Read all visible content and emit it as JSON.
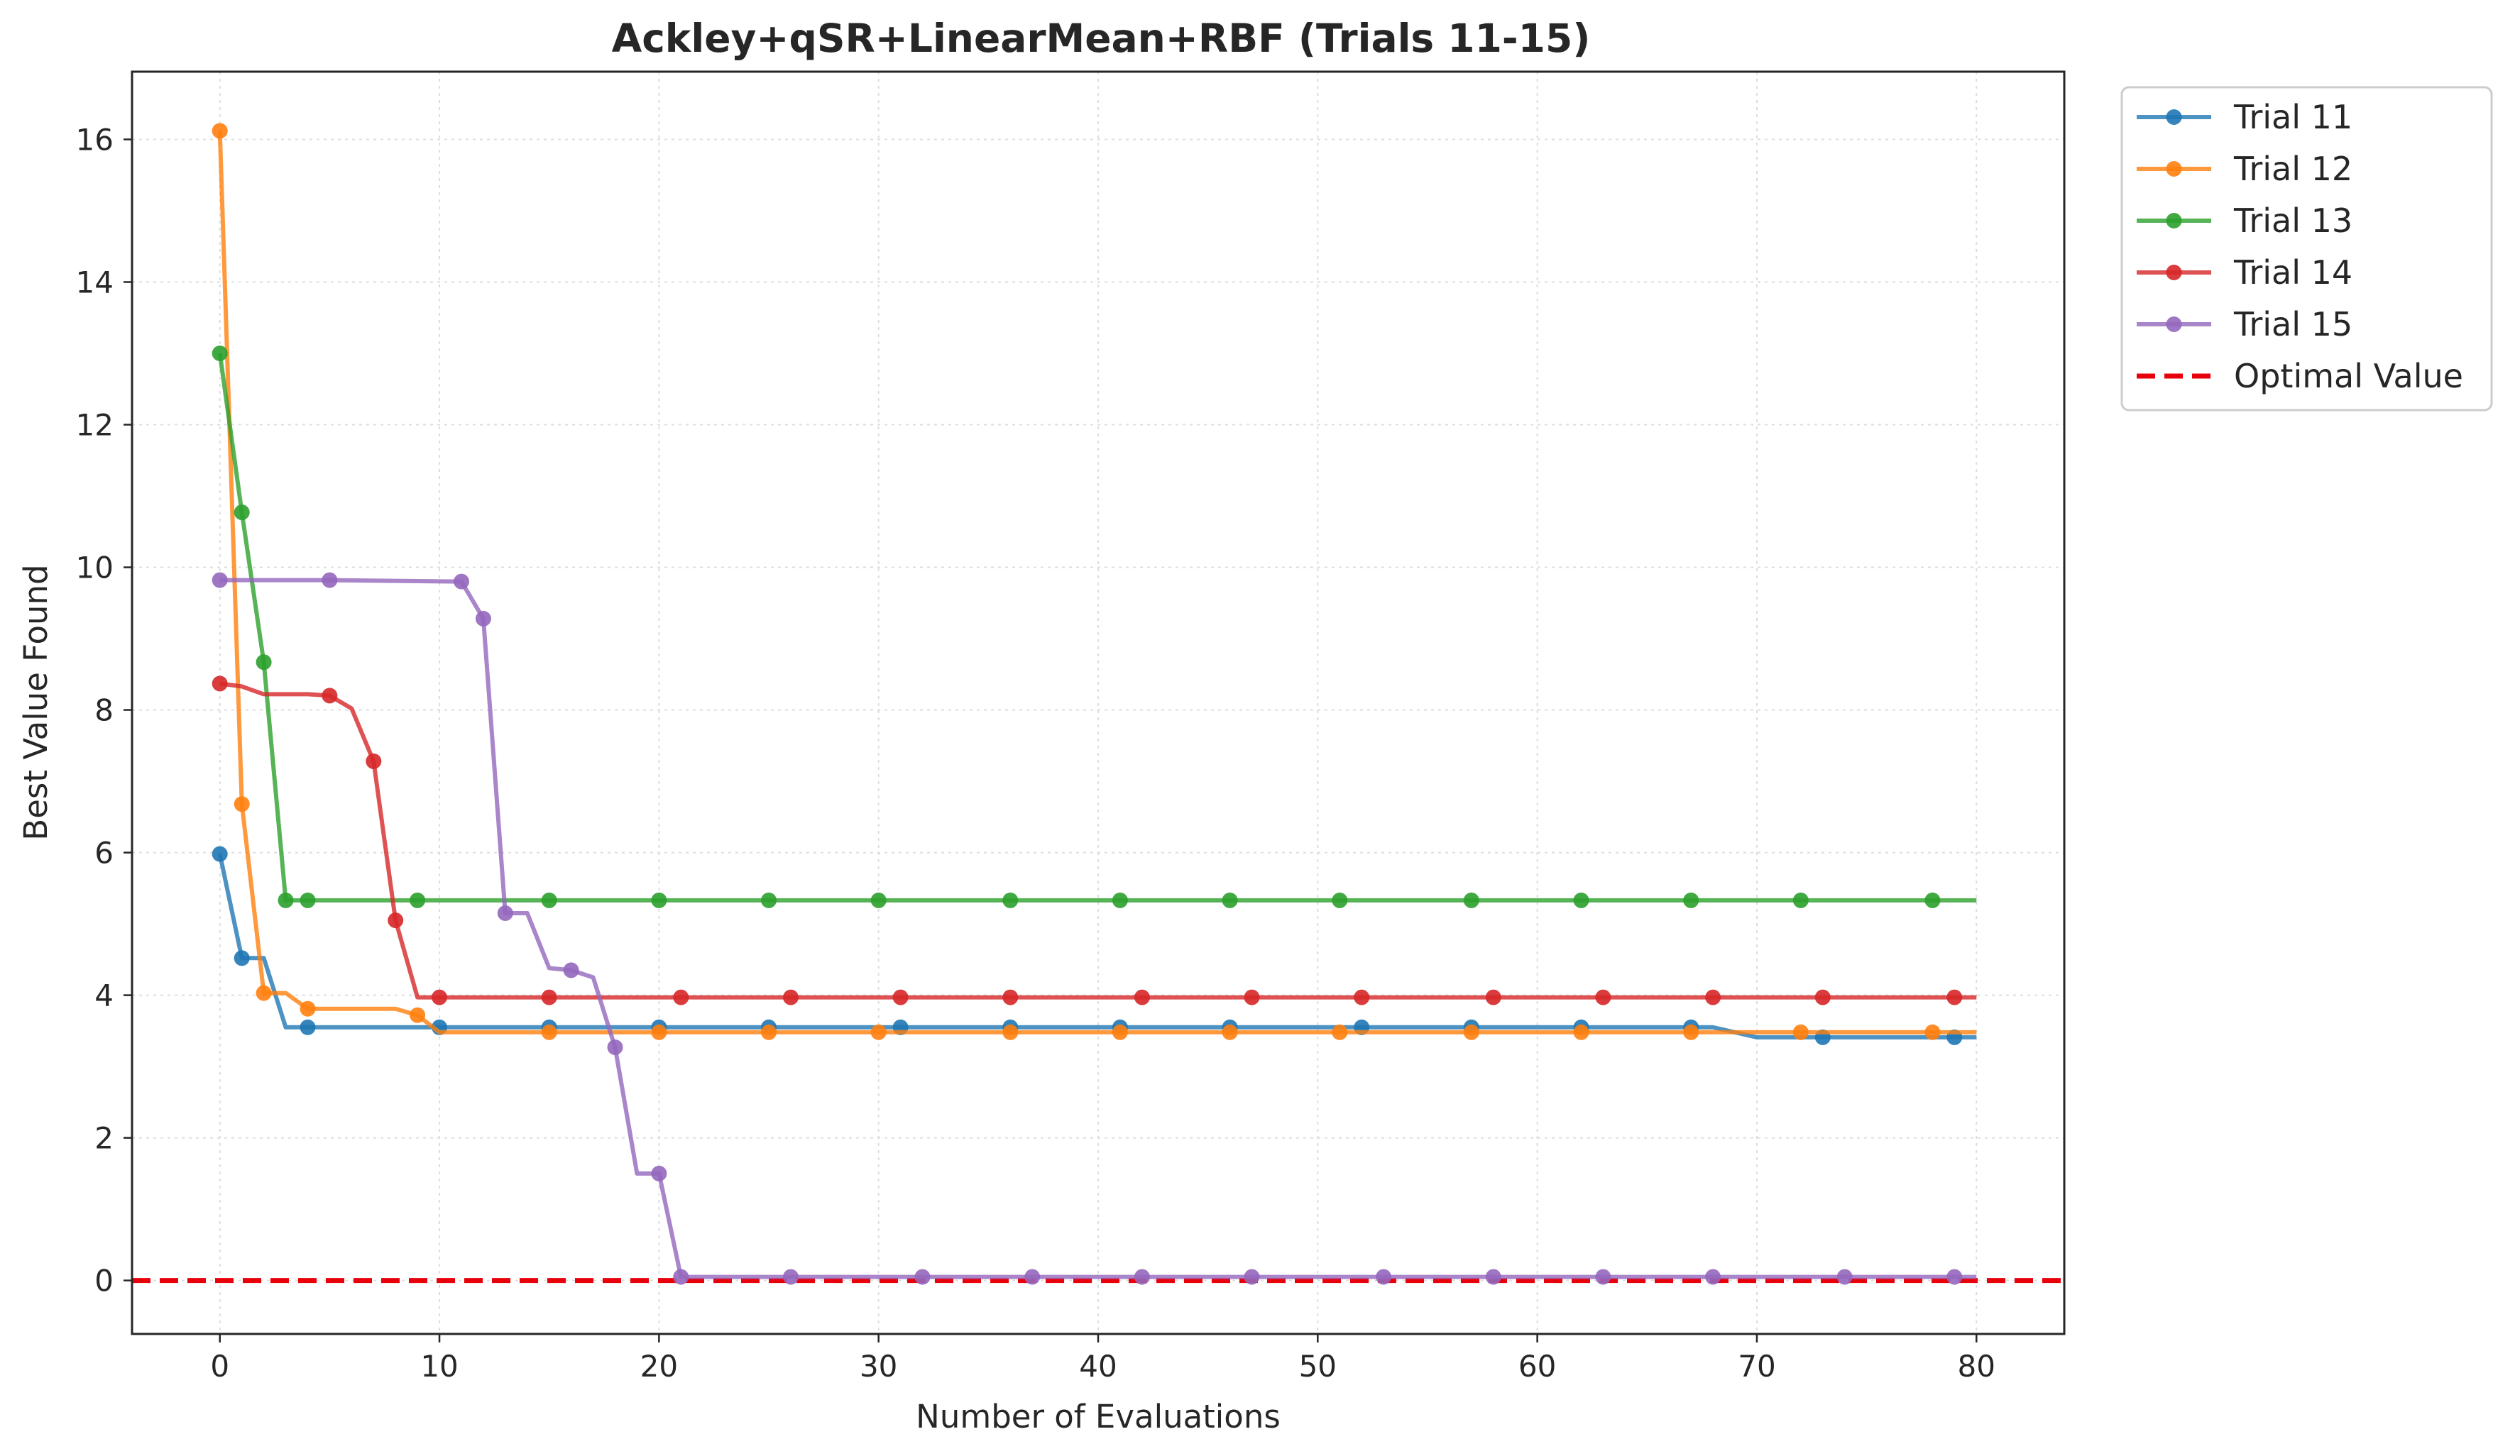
{
  "chart_data": {
    "type": "line",
    "title": "Ackley+qSR+LinearMean+RBF (Trials 11-15)",
    "xlabel": "Number of Evaluations",
    "ylabel": "Best Value Found",
    "xlim": [
      -4,
      84
    ],
    "ylim": [
      -0.75,
      16.95
    ],
    "xticks": [
      "0",
      "10",
      "20",
      "30",
      "40",
      "50",
      "60",
      "70",
      "80"
    ],
    "yticks": [
      "0",
      "2",
      "4",
      "6",
      "8",
      "10",
      "12",
      "14",
      "16"
    ],
    "grid": true,
    "legend_position": "outside-top-right",
    "series": [
      {
        "name": "Trial 11",
        "color": "#1f77b4",
        "points": [
          [
            0,
            5.98
          ],
          [
            1,
            4.52
          ],
          [
            2,
            4.52
          ],
          [
            3,
            3.55
          ],
          [
            4,
            3.55
          ],
          [
            10,
            3.55
          ],
          [
            15,
            3.55
          ],
          [
            20,
            3.55
          ],
          [
            25,
            3.55
          ],
          [
            31,
            3.55
          ],
          [
            36,
            3.55
          ],
          [
            41,
            3.55
          ],
          [
            46,
            3.55
          ],
          [
            52,
            3.55
          ],
          [
            57,
            3.55
          ],
          [
            62,
            3.55
          ],
          [
            67,
            3.55
          ],
          [
            68,
            3.55
          ],
          [
            70,
            3.41
          ],
          [
            73,
            3.41
          ],
          [
            79,
            3.41
          ],
          [
            80,
            3.41
          ]
        ],
        "markers": [
          0,
          1,
          4,
          10,
          15,
          20,
          25,
          31,
          36,
          41,
          46,
          52,
          57,
          62,
          67,
          73,
          79
        ]
      },
      {
        "name": "Trial 12",
        "color": "#ff7f0e",
        "points": [
          [
            0,
            16.12
          ],
          [
            1,
            6.68
          ],
          [
            2,
            4.03
          ],
          [
            3,
            4.03
          ],
          [
            4,
            3.81
          ],
          [
            8,
            3.81
          ],
          [
            9,
            3.72
          ],
          [
            10,
            3.48
          ],
          [
            15,
            3.48
          ],
          [
            20,
            3.48
          ],
          [
            25,
            3.48
          ],
          [
            30,
            3.48
          ],
          [
            36,
            3.48
          ],
          [
            41,
            3.48
          ],
          [
            46,
            3.48
          ],
          [
            51,
            3.48
          ],
          [
            57,
            3.48
          ],
          [
            62,
            3.48
          ],
          [
            67,
            3.48
          ],
          [
            72,
            3.48
          ],
          [
            78,
            3.48
          ],
          [
            80,
            3.48
          ]
        ],
        "markers": [
          0,
          1,
          2,
          4,
          9,
          15,
          20,
          25,
          30,
          36,
          41,
          46,
          51,
          57,
          62,
          67,
          72,
          78
        ]
      },
      {
        "name": "Trial 13",
        "color": "#2ca02c",
        "points": [
          [
            0,
            13.0
          ],
          [
            1,
            10.77
          ],
          [
            2,
            8.67
          ],
          [
            3,
            5.33
          ],
          [
            4,
            5.33
          ],
          [
            9,
            5.33
          ],
          [
            15,
            5.33
          ],
          [
            20,
            5.33
          ],
          [
            25,
            5.33
          ],
          [
            30,
            5.33
          ],
          [
            36,
            5.33
          ],
          [
            41,
            5.33
          ],
          [
            46,
            5.33
          ],
          [
            51,
            5.33
          ],
          [
            57,
            5.33
          ],
          [
            62,
            5.33
          ],
          [
            67,
            5.33
          ],
          [
            72,
            5.33
          ],
          [
            78,
            5.33
          ],
          [
            80,
            5.33
          ]
        ],
        "markers": [
          0,
          1,
          2,
          3,
          4,
          9,
          15,
          20,
          25,
          30,
          36,
          41,
          46,
          51,
          57,
          62,
          67,
          72,
          78
        ]
      },
      {
        "name": "Trial 14",
        "color": "#d62728",
        "points": [
          [
            0,
            8.37
          ],
          [
            1,
            8.33
          ],
          [
            2,
            8.22
          ],
          [
            4,
            8.22
          ],
          [
            5,
            8.2
          ],
          [
            6,
            8.02
          ],
          [
            7,
            7.28
          ],
          [
            8,
            5.05
          ],
          [
            9,
            3.97
          ],
          [
            10,
            3.97
          ],
          [
            15,
            3.97
          ],
          [
            21,
            3.97
          ],
          [
            26,
            3.97
          ],
          [
            31,
            3.97
          ],
          [
            36,
            3.97
          ],
          [
            42,
            3.97
          ],
          [
            47,
            3.97
          ],
          [
            52,
            3.97
          ],
          [
            58,
            3.97
          ],
          [
            63,
            3.97
          ],
          [
            68,
            3.97
          ],
          [
            73,
            3.97
          ],
          [
            79,
            3.97
          ],
          [
            80,
            3.97
          ]
        ],
        "markers": [
          0,
          5,
          7,
          8,
          10,
          15,
          21,
          26,
          31,
          36,
          42,
          47,
          52,
          58,
          63,
          68,
          73,
          79
        ]
      },
      {
        "name": "Trial 15",
        "color": "#9467bd",
        "points": [
          [
            0,
            9.82
          ],
          [
            5,
            9.82
          ],
          [
            11,
            9.8
          ],
          [
            12,
            9.28
          ],
          [
            13,
            5.15
          ],
          [
            14,
            5.15
          ],
          [
            15,
            4.38
          ],
          [
            16,
            4.35
          ],
          [
            17,
            4.25
          ],
          [
            18,
            3.27
          ],
          [
            19,
            1.5
          ],
          [
            20,
            1.5
          ],
          [
            21,
            0.05
          ],
          [
            26,
            0.05
          ],
          [
            32,
            0.05
          ],
          [
            37,
            0.05
          ],
          [
            42,
            0.05
          ],
          [
            47,
            0.05
          ],
          [
            53,
            0.05
          ],
          [
            58,
            0.05
          ],
          [
            63,
            0.05
          ],
          [
            68,
            0.05
          ],
          [
            74,
            0.05
          ],
          [
            79,
            0.05
          ],
          [
            80,
            0.05
          ]
        ],
        "markers": [
          0,
          5,
          11,
          12,
          13,
          16,
          18,
          20,
          21,
          26,
          32,
          37,
          42,
          47,
          53,
          58,
          63,
          68,
          74,
          79
        ]
      }
    ],
    "reference_lines": [
      {
        "name": "Optimal Value",
        "y": 0,
        "color": "#e8000b",
        "style": "dashed"
      }
    ]
  }
}
